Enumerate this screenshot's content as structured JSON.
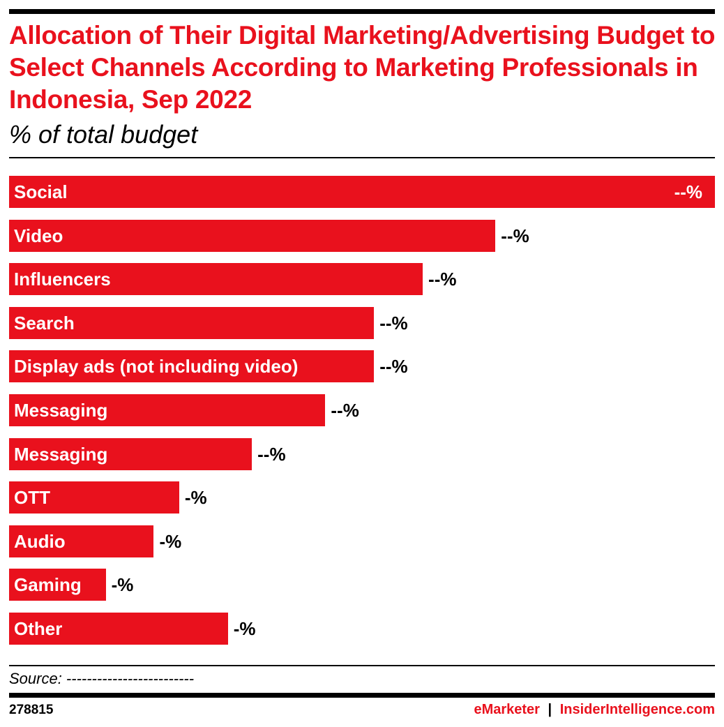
{
  "chart_data": {
    "type": "bar",
    "orientation": "horizontal",
    "title": "Allocation of Their Digital Marketing/Advertising Budget to Select Channels According to Marketing Professionals in Indonesia, Sep 2022",
    "subtitle": "% of total budget",
    "categories": [
      "Social",
      "Video",
      "Influencers",
      "Search",
      "Display ads (not including video)",
      "Messaging",
      "Messaging",
      "OTT",
      "Audio",
      "Gaming",
      "Other"
    ],
    "value_labels": [
      "--%",
      "--%",
      "--%",
      "--%",
      "--%",
      "--%",
      "--%",
      "-%",
      "-%",
      "-%",
      "-%"
    ],
    "relative_values": [
      1.0,
      0.689,
      0.586,
      0.517,
      0.517,
      0.448,
      0.344,
      0.241,
      0.205,
      0.137,
      0.31
    ],
    "bar_color": "#e9111d",
    "grid": false
  },
  "footer": {
    "source": "Source: -------------------------",
    "id": "278815",
    "brand1": "eMarketer",
    "sep": "|",
    "brand2": "InsiderIntelligence.com"
  }
}
